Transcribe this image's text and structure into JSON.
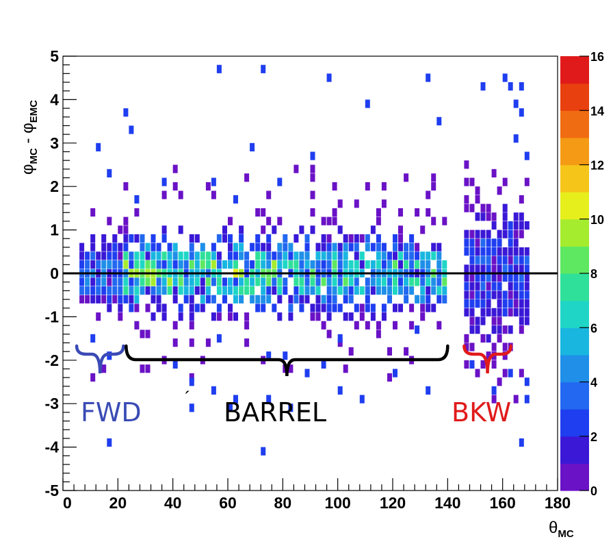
{
  "chart_data": {
    "type": "heatmap",
    "title": "",
    "xlabel": "θ",
    "xlabel_sub": "MC",
    "ylabel_main": "φ",
    "ylabel_sub1": "MC",
    "ylabel_mid": " - φ",
    "ylabel_sub2": "EMC",
    "xlim": [
      0,
      180
    ],
    "ylim": [
      -5,
      5
    ],
    "x_ticks": [
      "0",
      "20",
      "40",
      "60",
      "80",
      "100",
      "120",
      "140",
      "160",
      "180"
    ],
    "y_ticks": [
      "-5",
      "-4",
      "-3",
      "-2",
      "-1",
      "0",
      "1",
      "2",
      "3",
      "4",
      "5"
    ],
    "bin_width_x": 2,
    "bin_width_y": 0.2,
    "colorbar": {
      "min": 0,
      "max": 16,
      "ticks": [
        "0",
        "2",
        "4",
        "6",
        "8",
        "10",
        "12",
        "14",
        "16"
      ]
    },
    "reference_line_y": 0,
    "regions": [
      {
        "label": "FWD",
        "x_range": [
          5,
          22
        ],
        "color": "#3a4bb5"
      },
      {
        "label": "BARREL",
        "x_range": [
          23,
          140
        ],
        "color": "#000000"
      },
      {
        "label": "BKW",
        "x_range": [
          146,
          163
        ],
        "color": "#e01a1a"
      }
    ],
    "stray_mark": "´",
    "x_bands": [
      {
        "x_range": [
          6,
          22
        ],
        "y_range": [
          -2.5,
          2.0
        ],
        "peak": 4,
        "sigma": 0.55
      },
      {
        "x_range": [
          22,
          88
        ],
        "y_range": [
          -2.5,
          2.5
        ],
        "peak": 8,
        "sigma": 0.55
      },
      {
        "x_range": [
          88,
          140
        ],
        "y_range": [
          -2.5,
          2.5
        ],
        "peak": 7,
        "sigma": 0.55
      },
      {
        "x_range": [
          146,
          170
        ],
        "y_range": [
          -3.0,
          2.5
        ],
        "peak": 3,
        "sigma": 1.0
      }
    ],
    "gaps_x": [
      [
        140,
        146
      ]
    ],
    "outliers": [
      [
        57,
        4.7
      ],
      [
        73,
        4.8
      ],
      [
        96,
        4.4
      ],
      [
        111,
        3.9
      ],
      [
        133,
        4.5
      ],
      [
        137,
        3.4
      ],
      [
        13,
        2.9
      ],
      [
        23,
        3.6
      ],
      [
        25,
        3.3
      ],
      [
        37,
        2.0
      ],
      [
        79,
        2.0
      ],
      [
        69,
        2.9
      ],
      [
        91,
        2.6
      ],
      [
        153,
        4.2
      ],
      [
        161,
        4.4
      ],
      [
        163,
        4.2
      ],
      [
        167,
        4.3
      ],
      [
        165,
        3.9
      ],
      [
        167,
        3.6
      ],
      [
        165,
        3.0
      ],
      [
        169,
        2.7
      ],
      [
        17,
        2.2
      ],
      [
        27,
        1.7
      ],
      [
        55,
        2.0
      ],
      [
        63,
        1.7
      ],
      [
        75,
        -1.9
      ],
      [
        81,
        -1.9
      ],
      [
        95,
        -2.2
      ],
      [
        121,
        -2.3
      ],
      [
        133,
        -2.7
      ],
      [
        149,
        -2.1
      ],
      [
        163,
        -2.3
      ],
      [
        169,
        -2.5
      ],
      [
        169,
        -2.9
      ],
      [
        11,
        -1.6
      ],
      [
        17,
        -1.9
      ],
      [
        41,
        -2.2
      ],
      [
        47,
        -2.5
      ],
      [
        55,
        -2.8
      ],
      [
        63,
        -2.9
      ],
      [
        75,
        -3.0
      ],
      [
        83,
        -3.1
      ],
      [
        89,
        -2.4
      ],
      [
        101,
        -2.7
      ],
      [
        109,
        -2.9
      ],
      [
        47,
        -3.2
      ],
      [
        61,
        -3.2
      ],
      [
        73,
        -4.2
      ],
      [
        17,
        -3.9
      ],
      [
        157,
        -2.7
      ],
      [
        167,
        -3.9
      ],
      [
        57,
        -1.6
      ],
      [
        101,
        -1.5
      ],
      [
        129,
        -1.3
      ]
    ]
  }
}
